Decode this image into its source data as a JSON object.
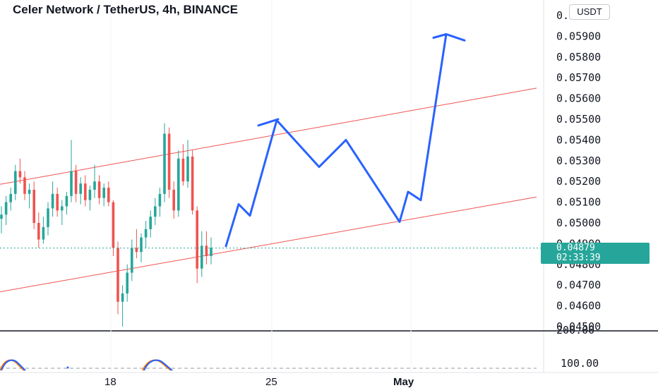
{
  "header": {
    "title": "Celer Network / TetherUS, 4h, BINANCE",
    "currency": "USDT"
  },
  "current": {
    "price": "0.04879",
    "countdown": "02:33:39",
    "value": 0.04879
  },
  "colors": {
    "up": "#26a69a",
    "down": "#ef5350",
    "channel": "#ef5350",
    "projection": "#2962ff"
  },
  "chart_data": {
    "type": "candlestick",
    "price_axis": {
      "ticks": [
        "0.06000",
        "0.05900",
        "0.05800",
        "0.05700",
        "0.05600",
        "0.05500",
        "0.05400",
        "0.05300",
        "0.05200",
        "0.05100",
        "0.05000",
        "0.04900",
        "0.04800",
        "0.04700",
        "0.04600",
        "0.04500"
      ],
      "range": [
        0.045,
        0.06
      ]
    },
    "indicator_axis": {
      "ticks": [
        "200.00",
        "100.00"
      ]
    },
    "time_axis": {
      "labels": [
        "18",
        "25",
        "May"
      ]
    },
    "candles": [
      [
        0.0502,
        0.0508,
        0.0495,
        0.0504
      ],
      [
        0.0504,
        0.0513,
        0.0499,
        0.051
      ],
      [
        0.051,
        0.0517,
        0.0506,
        0.0514
      ],
      [
        0.0514,
        0.0528,
        0.0511,
        0.0525
      ],
      [
        0.0525,
        0.0531,
        0.0519,
        0.0522
      ],
      [
        0.0522,
        0.0525,
        0.0511,
        0.0514
      ],
      [
        0.0514,
        0.0519,
        0.0507,
        0.0516
      ],
      [
        0.0516,
        0.052,
        0.0497,
        0.05
      ],
      [
        0.05,
        0.0505,
        0.0488,
        0.0492
      ],
      [
        0.0492,
        0.0503,
        0.049,
        0.0498
      ],
      [
        0.0498,
        0.051,
        0.0494,
        0.0507
      ],
      [
        0.0507,
        0.052,
        0.0503,
        0.0514
      ],
      [
        0.0514,
        0.0517,
        0.0503,
        0.0506
      ],
      [
        0.0506,
        0.0511,
        0.0499,
        0.0508
      ],
      [
        0.0508,
        0.0515,
        0.0504,
        0.0513
      ],
      [
        0.0513,
        0.054,
        0.051,
        0.0525
      ],
      [
        0.0525,
        0.0528,
        0.051,
        0.0514
      ],
      [
        0.0514,
        0.0522,
        0.0509,
        0.0519
      ],
      [
        0.0519,
        0.0523,
        0.0508,
        0.0511
      ],
      [
        0.0511,
        0.0518,
        0.0506,
        0.0516
      ],
      [
        0.0516,
        0.0528,
        0.0512,
        0.052
      ],
      [
        0.052,
        0.0523,
        0.0509,
        0.0512
      ],
      [
        0.0512,
        0.0519,
        0.0508,
        0.0517
      ],
      [
        0.0517,
        0.052,
        0.0508,
        0.051
      ],
      [
        0.051,
        0.0511,
        0.0484,
        0.0488
      ],
      [
        0.0488,
        0.0491,
        0.0456,
        0.0462
      ],
      [
        0.0462,
        0.047,
        0.045,
        0.0466
      ],
      [
        0.0466,
        0.048,
        0.0462,
        0.0476
      ],
      [
        0.0476,
        0.0492,
        0.0472,
        0.0488
      ],
      [
        0.0488,
        0.0497,
        0.0483,
        0.0486
      ],
      [
        0.0486,
        0.0495,
        0.0481,
        0.0493
      ],
      [
        0.0493,
        0.0501,
        0.0488,
        0.0497
      ],
      [
        0.0497,
        0.0506,
        0.0493,
        0.0503
      ],
      [
        0.0503,
        0.0512,
        0.0499,
        0.0508
      ],
      [
        0.0508,
        0.0517,
        0.0503,
        0.0514
      ],
      [
        0.0514,
        0.0548,
        0.051,
        0.0543
      ],
      [
        0.0543,
        0.0546,
        0.0512,
        0.0516
      ],
      [
        0.0516,
        0.052,
        0.0502,
        0.0506
      ],
      [
        0.0506,
        0.0535,
        0.0503,
        0.0531
      ],
      [
        0.0531,
        0.0538,
        0.0518,
        0.052
      ],
      [
        0.052,
        0.054,
        0.0517,
        0.0532
      ],
      [
        0.0532,
        0.0535,
        0.0504,
        0.0506
      ],
      [
        0.0506,
        0.0508,
        0.0471,
        0.0478
      ],
      [
        0.0478,
        0.0496,
        0.0474,
        0.0489
      ],
      [
        0.0489,
        0.0496,
        0.048,
        0.0484
      ],
      [
        0.0484,
        0.0493,
        0.048,
        0.0488
      ]
    ],
    "channel": {
      "upper": [
        [
          0,
          0.05186
        ],
        [
          760,
          0.0565
        ]
      ],
      "lower": [
        [
          0,
          0.04668
        ],
        [
          760,
          0.05125
        ]
      ]
    },
    "projection": [
      [
        320,
        0.04888
      ],
      [
        338,
        0.0509
      ],
      [
        354,
        0.05035
      ],
      [
        392,
        0.05495
      ],
      [
        452,
        0.0527
      ],
      [
        490,
        0.054
      ],
      [
        566,
        0.05005
      ],
      [
        578,
        0.0515
      ],
      [
        596,
        0.0511
      ],
      [
        632,
        0.0591
      ]
    ],
    "projection_cap": [
      [
        614,
        0.05893
      ],
      [
        632,
        0.0591
      ],
      [
        658,
        0.0588
      ]
    ],
    "top_mark": [
      [
        366,
        0.0547
      ],
      [
        394,
        0.055
      ]
    ],
    "horizontal_line": 0.045
  }
}
